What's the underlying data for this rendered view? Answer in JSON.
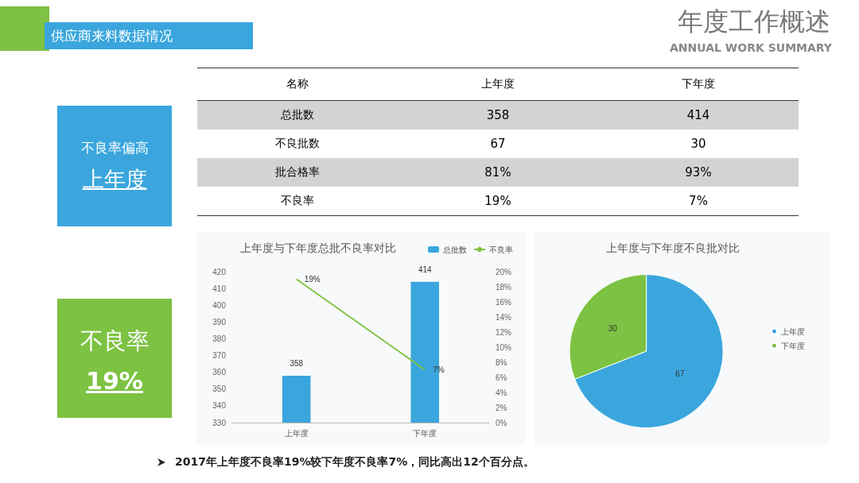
{
  "chart_data": [
    {
      "type": "other",
      "title": "年度工作概述",
      "subtitle": "ANNUAL WORK SUMMARY",
      "annotations": [
        "供应商来料数据情况",
        "不良率偏高",
        "上年度",
        "不良率",
        "19%",
        "2017年上年度不良率19%较下年度不良率7%，同比高出12个百分点。"
      ]
    },
    {
      "type": "other",
      "categories": [
        "名称",
        "上年度",
        "下年度"
      ],
      "y_categories": [
        "总批数",
        "不良批数",
        "批合格率",
        "不良率"
      ],
      "cell_labels": [
        [
          "358",
          "414"
        ],
        [
          "67",
          "30"
        ],
        [
          "81%",
          "93%"
        ],
        [
          "19%",
          "7%"
        ]
      ]
    },
    {
      "type": "bar",
      "title": "上年度与下年度总批不良率对比",
      "categories": [
        "上年度",
        "下年度"
      ],
      "legend": "top right",
      "grid": false,
      "series": [
        {
          "name": "总批数",
          "type": "bar",
          "color": "#3aa6dd",
          "values": [
            358,
            414
          ],
          "value_labels": [
            "358",
            "414"
          ]
        },
        {
          "name": "不良率",
          "type": "line",
          "axis": "y2",
          "color": "#7dc242",
          "values": [
            19,
            7
          ],
          "value_labels": [
            "19%",
            "7%"
          ]
        }
      ],
      "ylim": [
        330,
        420
      ],
      "yticks": [
        330,
        340,
        350,
        360,
        370,
        380,
        390,
        400,
        410,
        420
      ],
      "y2lim": [
        0,
        20
      ],
      "y2ticks": [
        {
          "value": 0,
          "label": "0%"
        },
        {
          "value": 2,
          "label": "2%"
        },
        {
          "value": 4,
          "label": "4%"
        },
        {
          "value": 6,
          "label": "6%"
        },
        {
          "value": 8,
          "label": "8%"
        },
        {
          "value": 10,
          "label": "10%"
        },
        {
          "value": 12,
          "label": "12%"
        },
        {
          "value": 14,
          "label": "14%"
        },
        {
          "value": 16,
          "label": "16%"
        },
        {
          "value": 18,
          "label": "18%"
        },
        {
          "value": 20,
          "label": "20%"
        }
      ]
    },
    {
      "type": "pie",
      "title": "上年度与下年度不良批对比",
      "categories": [
        "上年度",
        "下年度"
      ],
      "values": [
        67,
        30
      ],
      "colors": [
        "#3aa6dd",
        "#7dc242"
      ],
      "data_labels": true,
      "legend": "right"
    }
  ]
}
